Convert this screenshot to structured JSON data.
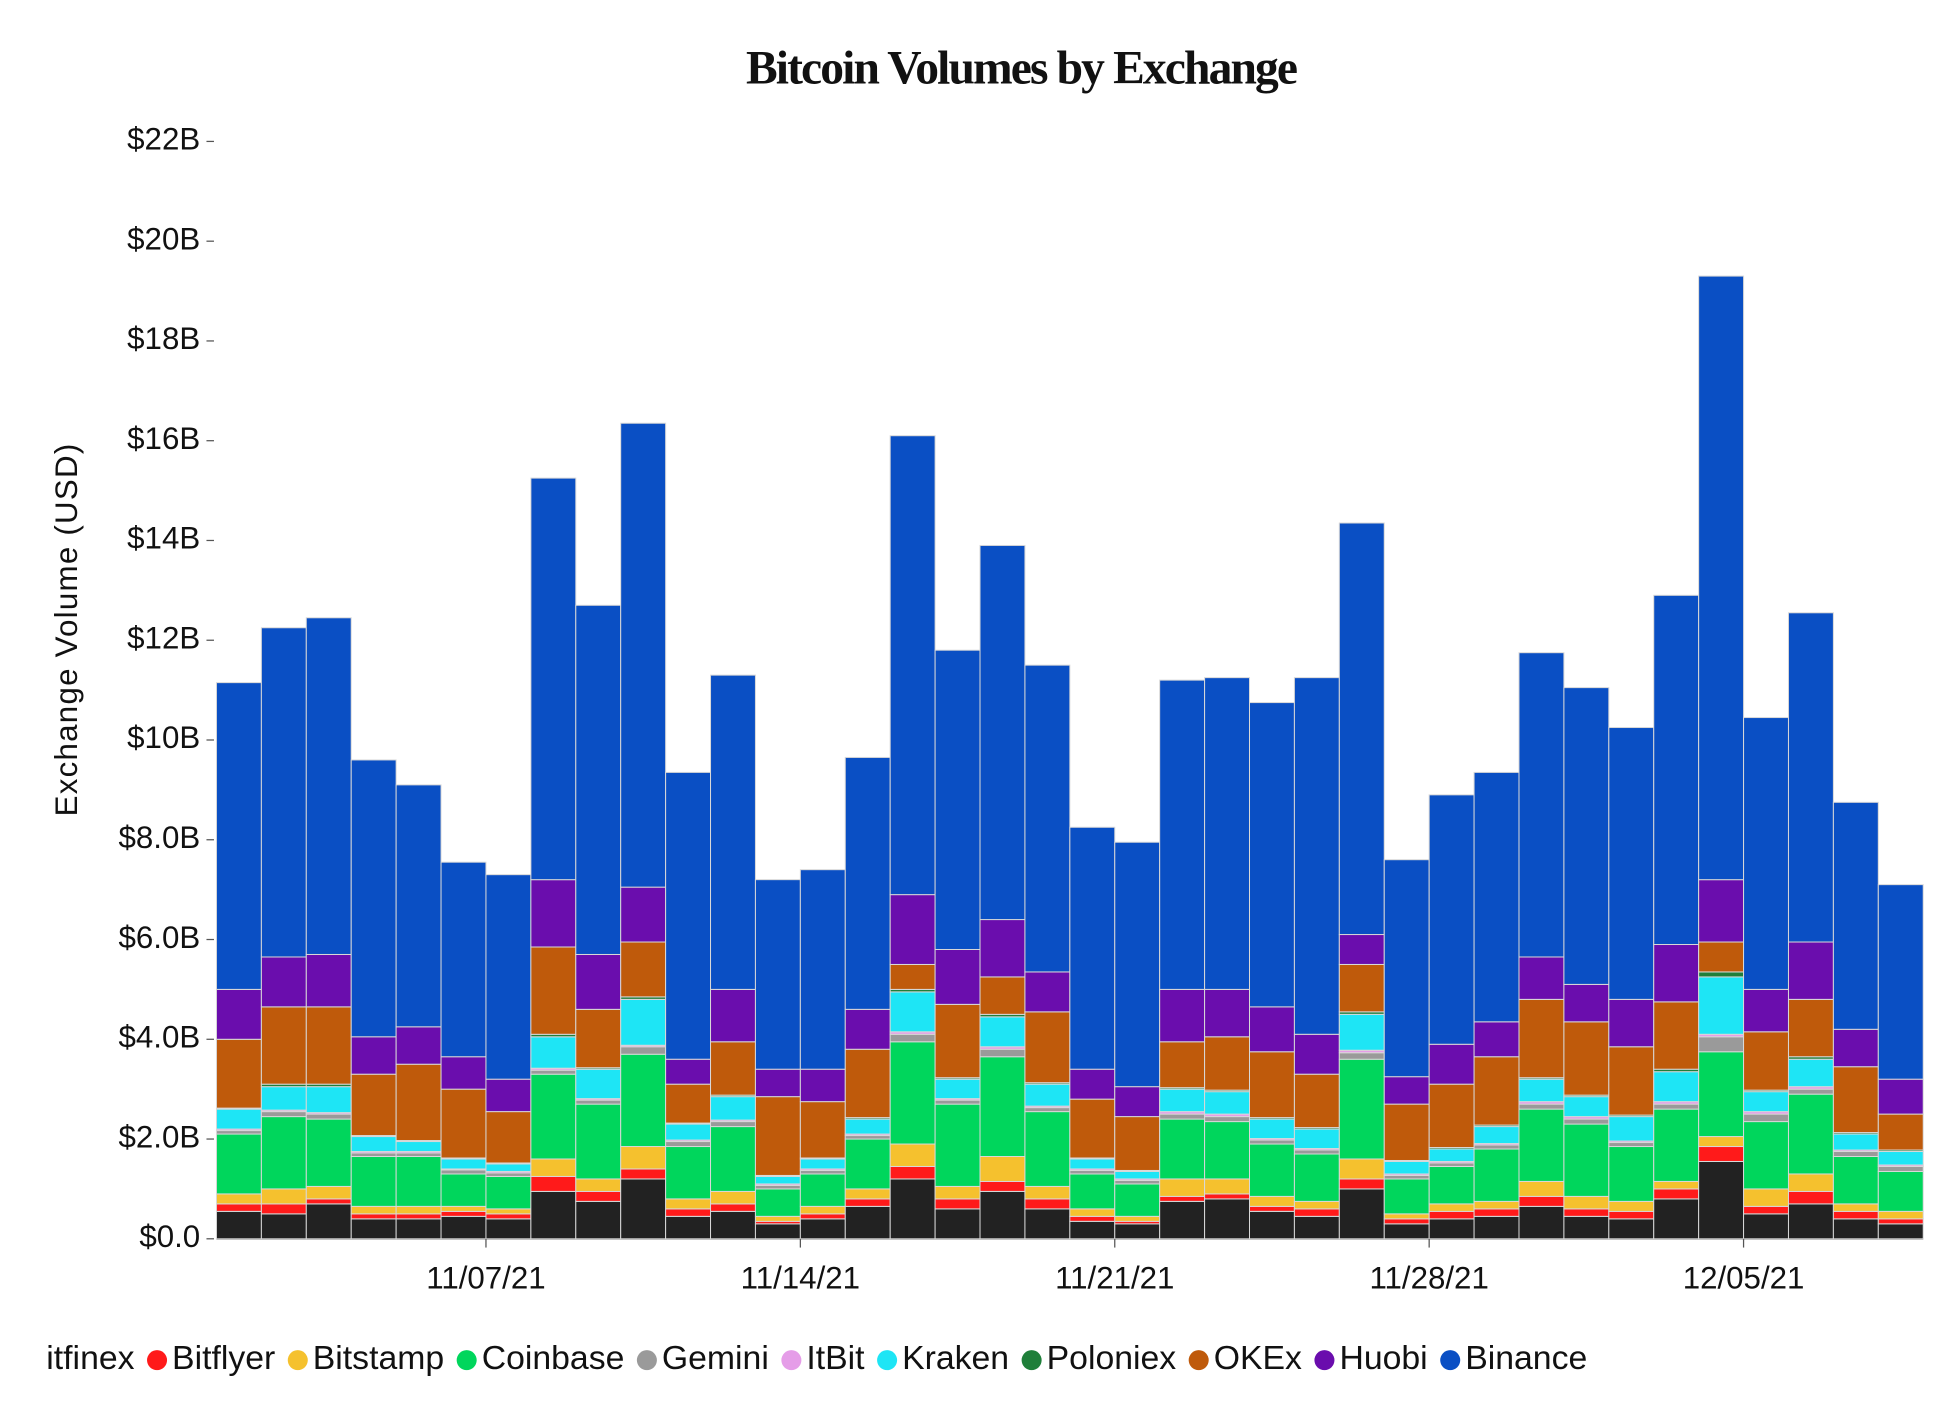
{
  "chart_data": {
    "type": "stacked_bar",
    "title": "Bitcoin Volumes by Exchange",
    "y_label": "Exchange Volume (USD)",
    "categories": [
      null,
      null,
      null,
      null,
      null,
      null,
      "11/07/21",
      null,
      null,
      null,
      null,
      null,
      null,
      "11/14/21",
      null,
      null,
      null,
      null,
      null,
      null,
      "11/21/21",
      null,
      null,
      null,
      null,
      null,
      null,
      "11/28/21",
      null,
      null,
      null,
      null,
      null,
      null,
      "12/05/21",
      null,
      null,
      null
    ],
    "ylim": [
      0,
      22
    ],
    "yticks": [
      {
        "value": 0,
        "label": "$0.0"
      },
      {
        "value": 2,
        "label": "$2.0B"
      },
      {
        "value": 4,
        "label": "$4.0B"
      },
      {
        "value": 6,
        "label": "$6.0B"
      },
      {
        "value": 8,
        "label": "$8.0B"
      },
      {
        "value": 10,
        "label": "$10B"
      },
      {
        "value": 12,
        "label": "$12B"
      },
      {
        "value": 14,
        "label": "$14B"
      },
      {
        "value": 16,
        "label": "$16B"
      },
      {
        "value": 18,
        "label": "$18B"
      },
      {
        "value": 20,
        "label": "$20B"
      },
      {
        "value": 22,
        "label": "$22B"
      }
    ],
    "legend": "bottom",
    "series": [
      {
        "name": "itfinex",
        "color": "#222222",
        "values": [
          0.55,
          0.5,
          0.7,
          0.4,
          0.4,
          0.45,
          0.4,
          0.95,
          0.75,
          1.2,
          0.45,
          0.55,
          0.3,
          0.4,
          0.65,
          1.2,
          0.6,
          0.95,
          0.6,
          0.35,
          0.3,
          0.75,
          0.8,
          0.55,
          0.45,
          1.0,
          0.3,
          0.4,
          0.45,
          0.65,
          0.45,
          0.4,
          0.8,
          1.55,
          0.5,
          0.7,
          0.4,
          0.3
        ]
      },
      {
        "name": "Bitflyer",
        "color": "#ff1a1a",
        "values": [
          0.15,
          0.2,
          0.1,
          0.1,
          0.1,
          0.1,
          0.1,
          0.3,
          0.2,
          0.2,
          0.15,
          0.15,
          0.05,
          0.1,
          0.15,
          0.25,
          0.2,
          0.2,
          0.2,
          0.1,
          0.05,
          0.1,
          0.1,
          0.1,
          0.15,
          0.2,
          0.1,
          0.15,
          0.15,
          0.2,
          0.15,
          0.15,
          0.2,
          0.3,
          0.15,
          0.25,
          0.15,
          0.1
        ]
      },
      {
        "name": "Bitstamp",
        "color": "#f5c12e",
        "values": [
          0.2,
          0.3,
          0.25,
          0.15,
          0.15,
          0.1,
          0.1,
          0.35,
          0.25,
          0.45,
          0.2,
          0.25,
          0.1,
          0.15,
          0.2,
          0.45,
          0.25,
          0.5,
          0.25,
          0.15,
          0.1,
          0.35,
          0.3,
          0.2,
          0.15,
          0.4,
          0.1,
          0.15,
          0.15,
          0.3,
          0.25,
          0.2,
          0.15,
          0.2,
          0.35,
          0.35,
          0.15,
          0.15
        ]
      },
      {
        "name": "Coinbase",
        "color": "#00d65c",
        "values": [
          1.2,
          1.45,
          1.35,
          1.0,
          1.0,
          0.65,
          0.65,
          1.7,
          1.5,
          1.85,
          1.05,
          1.3,
          0.55,
          0.65,
          1.0,
          2.05,
          1.65,
          2.0,
          1.5,
          0.7,
          0.65,
          1.2,
          1.15,
          1.05,
          0.95,
          2.0,
          0.7,
          0.75,
          1.05,
          1.45,
          1.45,
          1.1,
          1.45,
          1.7,
          1.35,
          1.6,
          0.95,
          0.8
        ]
      },
      {
        "name": "Gemini",
        "color": "#9a9a9a",
        "values": [
          0.07,
          0.1,
          0.1,
          0.07,
          0.07,
          0.08,
          0.07,
          0.08,
          0.08,
          0.15,
          0.1,
          0.1,
          0.07,
          0.07,
          0.07,
          0.15,
          0.08,
          0.15,
          0.08,
          0.07,
          0.07,
          0.1,
          0.1,
          0.08,
          0.08,
          0.13,
          0.07,
          0.07,
          0.08,
          0.1,
          0.1,
          0.08,
          0.1,
          0.3,
          0.15,
          0.1,
          0.1,
          0.1
        ]
      },
      {
        "name": "ItBit",
        "color": "#e59de8",
        "values": [
          0.03,
          0.03,
          0.03,
          0.03,
          0.03,
          0.02,
          0.03,
          0.04,
          0.03,
          0.03,
          0.03,
          0.03,
          0.03,
          0.03,
          0.03,
          0.05,
          0.03,
          0.05,
          0.03,
          0.03,
          0.03,
          0.05,
          0.05,
          0.03,
          0.03,
          0.05,
          0.03,
          0.03,
          0.03,
          0.05,
          0.05,
          0.03,
          0.05,
          0.05,
          0.05,
          0.05,
          0.03,
          0.03
        ]
      },
      {
        "name": "Kraken",
        "color": "#1ee5f5",
        "values": [
          0.4,
          0.47,
          0.52,
          0.3,
          0.2,
          0.2,
          0.15,
          0.63,
          0.59,
          0.92,
          0.32,
          0.47,
          0.15,
          0.2,
          0.3,
          0.8,
          0.39,
          0.6,
          0.44,
          0.2,
          0.15,
          0.45,
          0.45,
          0.39,
          0.39,
          0.72,
          0.25,
          0.25,
          0.34,
          0.45,
          0.4,
          0.49,
          0.6,
          1.15,
          0.4,
          0.55,
          0.32,
          0.27
        ]
      },
      {
        "name": "Poloniex",
        "color": "#1f7f3a",
        "values": [
          0.02,
          0.05,
          0.05,
          0.02,
          0.02,
          0.02,
          0.02,
          0.05,
          0.03,
          0.05,
          0.02,
          0.03,
          0.02,
          0.02,
          0.03,
          0.05,
          0.03,
          0.05,
          0.03,
          0.02,
          0.02,
          0.03,
          0.03,
          0.03,
          0.03,
          0.05,
          0.02,
          0.03,
          0.03,
          0.03,
          0.03,
          0.03,
          0.05,
          0.1,
          0.03,
          0.05,
          0.03,
          0.03
        ]
      },
      {
        "name": "OKEx",
        "color": "#bf5a0b",
        "values": [
          1.38,
          1.55,
          1.55,
          1.23,
          1.53,
          1.38,
          1.03,
          1.75,
          1.17,
          1.1,
          0.78,
          1.07,
          1.58,
          1.13,
          1.37,
          0.5,
          1.47,
          0.75,
          1.42,
          1.18,
          1.08,
          0.92,
          1.07,
          1.32,
          1.07,
          0.95,
          1.13,
          1.27,
          1.37,
          1.57,
          1.47,
          1.37,
          1.35,
          0.6,
          1.17,
          1.15,
          1.32,
          0.72
        ]
      },
      {
        "name": "Huobi",
        "color": "#6a0dad",
        "values": [
          1.0,
          1.0,
          1.05,
          0.75,
          0.75,
          0.65,
          0.65,
          1.35,
          1.1,
          1.1,
          0.5,
          1.05,
          0.55,
          0.65,
          0.8,
          1.4,
          1.1,
          1.15,
          0.8,
          0.6,
          0.6,
          1.05,
          0.95,
          0.9,
          0.8,
          0.6,
          0.55,
          0.8,
          0.7,
          0.85,
          0.75,
          0.95,
          1.15,
          1.25,
          0.85,
          1.15,
          0.75,
          0.7
        ]
      },
      {
        "name": "Binance",
        "color": "#0a4fc4",
        "values": [
          6.15,
          6.6,
          6.75,
          5.55,
          4.85,
          3.9,
          4.1,
          8.05,
          7.0,
          9.3,
          5.75,
          6.3,
          3.8,
          4.0,
          5.05,
          9.2,
          6.0,
          7.5,
          6.15,
          4.85,
          4.9,
          6.2,
          6.25,
          6.1,
          7.15,
          8.25,
          4.35,
          5.0,
          5.0,
          6.1,
          5.95,
          5.45,
          7.0,
          12.1,
          5.45,
          6.6,
          4.55,
          3.9
        ]
      }
    ]
  }
}
